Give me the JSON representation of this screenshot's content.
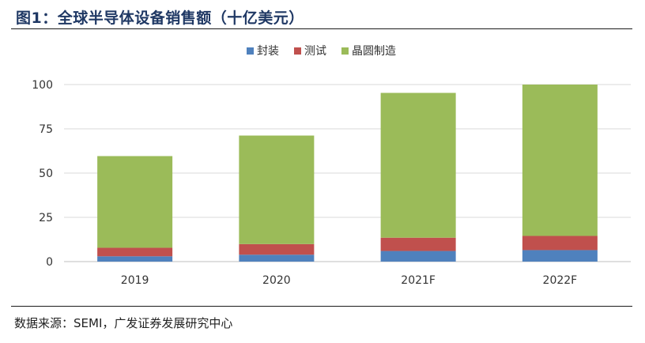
{
  "header": {
    "title": "图1：全球半导体设备销售额（十亿美元）"
  },
  "footer": {
    "source": "数据来源：SEMI，广发证券发展研究中心"
  },
  "chart_data": {
    "type": "bar",
    "stacked": true,
    "categories": [
      "2019",
      "2020",
      "2021F",
      "2022F"
    ],
    "series": [
      {
        "name": "封装",
        "color": "#4f81bd",
        "values": [
          3,
          3.9,
          6,
          6.5
        ]
      },
      {
        "name": "测试",
        "color": "#c0504d",
        "values": [
          4.8,
          6,
          7.5,
          8
        ]
      },
      {
        "name": "晶圆制造",
        "color": "#9bbb59",
        "values": [
          51.8,
          61.3,
          81.8,
          85.5
        ]
      }
    ],
    "yticks": [
      "0",
      "25",
      "50",
      "75",
      "100"
    ],
    "ylim": [
      0,
      100
    ],
    "grid": true,
    "legend_position": "top-center"
  }
}
